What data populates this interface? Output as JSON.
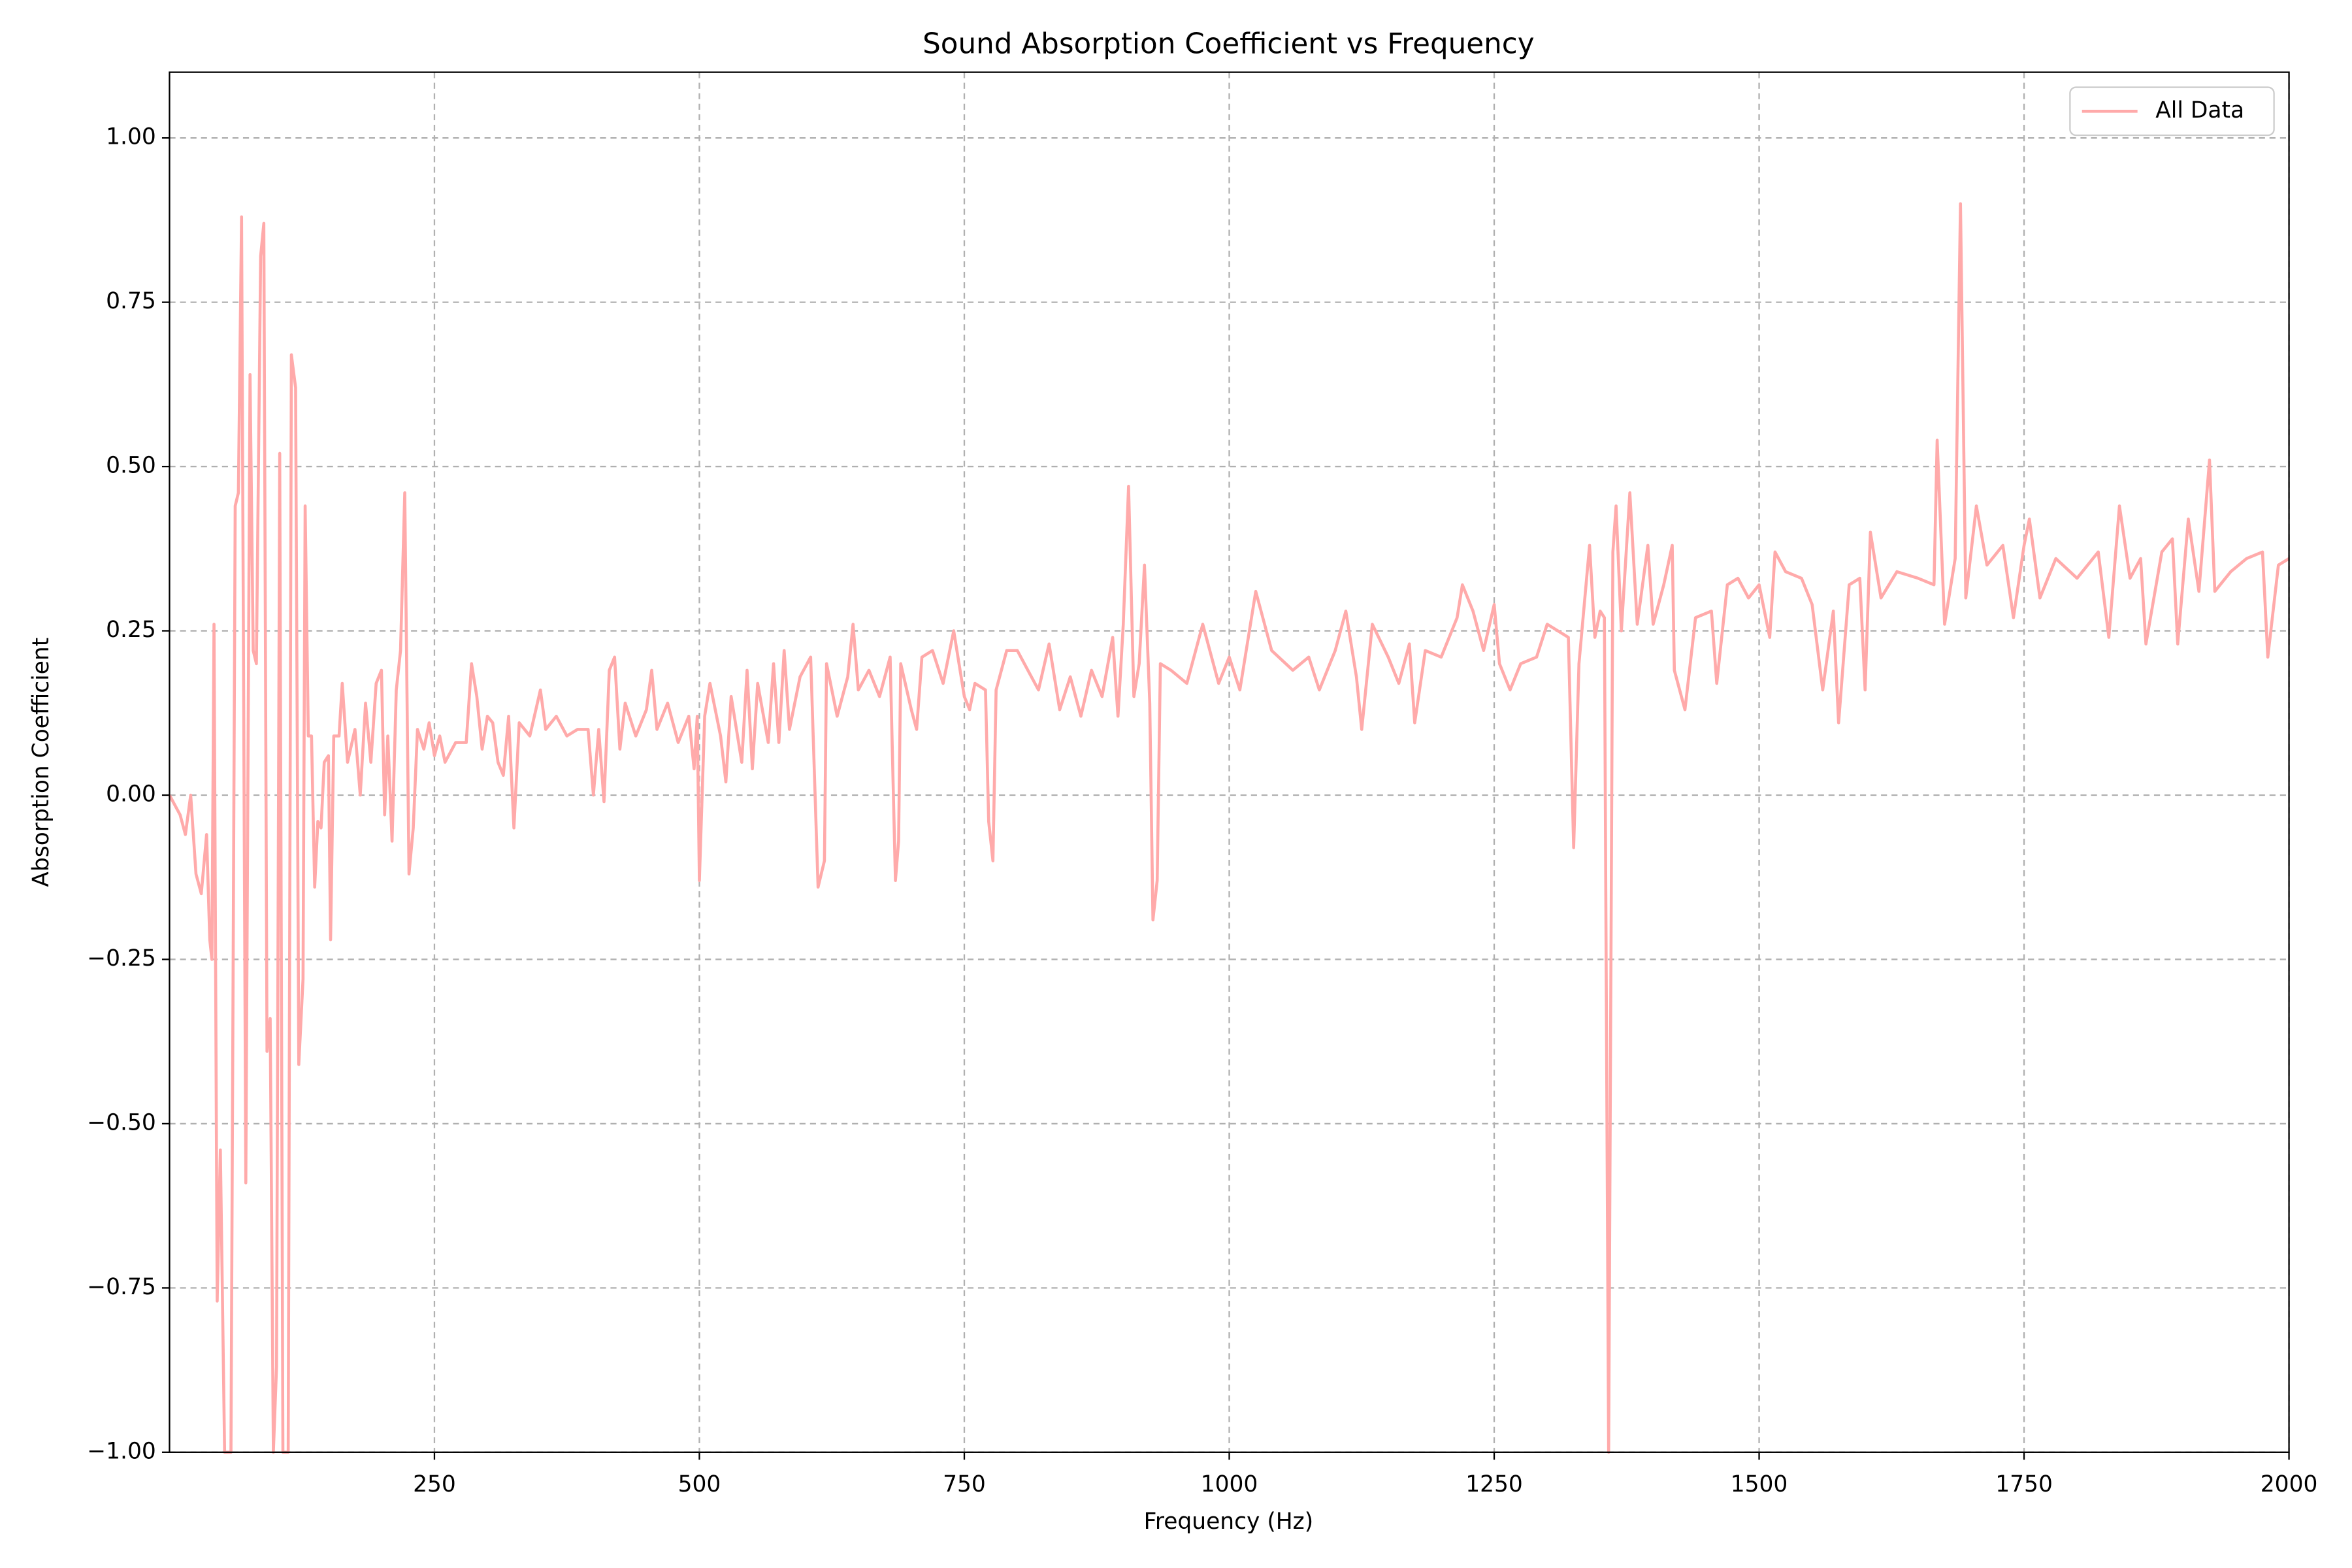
{
  "chart_data": {
    "type": "line",
    "title": "Sound Absorption Coefficient vs Frequency",
    "x_label": "Frequency (Hz)",
    "y_label": "Absorption Coefficient",
    "x": [
      0,
      10,
      15,
      20,
      25,
      30,
      35,
      38,
      40,
      42,
      45,
      48,
      52,
      58,
      62,
      65,
      68,
      72,
      76,
      79,
      82,
      86,
      89,
      92,
      95,
      98,
      101,
      104,
      107,
      112,
      115,
      119,
      122,
      126,
      128,
      131,
      134,
      137,
      140,
      143,
      146,
      150,
      152,
      155,
      160,
      163,
      168,
      175,
      180,
      185,
      190,
      195,
      200,
      203,
      206,
      210,
      214,
      218,
      222,
      226,
      230,
      234,
      240,
      245,
      250,
      255,
      260,
      270,
      280,
      285,
      290,
      295,
      300,
      305,
      310,
      315,
      320,
      325,
      330,
      340,
      350,
      355,
      365,
      375,
      385,
      395,
      400,
      405,
      410,
      415,
      420,
      425,
      430,
      440,
      450,
      455,
      460,
      470,
      480,
      490,
      495,
      498,
      500,
      505,
      510,
      520,
      525,
      530,
      535,
      540,
      545,
      550,
      555,
      565,
      570,
      575,
      580,
      585,
      595,
      605,
      612,
      618,
      620,
      630,
      640,
      645,
      650,
      660,
      670,
      680,
      685,
      688,
      690,
      700,
      705,
      710,
      720,
      730,
      740,
      750,
      755,
      760,
      770,
      773,
      777,
      780,
      790,
      800,
      810,
      820,
      830,
      840,
      850,
      860,
      870,
      880,
      890,
      895,
      900,
      905,
      910,
      915,
      920,
      925,
      928,
      932,
      935,
      945,
      960,
      975,
      990,
      1000,
      1010,
      1025,
      1040,
      1060,
      1075,
      1085,
      1100,
      1110,
      1120,
      1125,
      1135,
      1150,
      1160,
      1170,
      1175,
      1185,
      1200,
      1215,
      1220,
      1230,
      1240,
      1250,
      1255,
      1265,
      1275,
      1290,
      1300,
      1320,
      1325,
      1330,
      1340,
      1345,
      1350,
      1354,
      1358,
      1362,
      1365,
      1370,
      1378,
      1385,
      1395,
      1400,
      1410,
      1418,
      1420,
      1430,
      1440,
      1455,
      1460,
      1470,
      1480,
      1490,
      1500,
      1510,
      1515,
      1525,
      1540,
      1550,
      1560,
      1570,
      1575,
      1585,
      1595,
      1600,
      1605,
      1615,
      1630,
      1650,
      1665,
      1668,
      1675,
      1685,
      1690,
      1695,
      1705,
      1715,
      1730,
      1740,
      1750,
      1755,
      1765,
      1780,
      1800,
      1820,
      1830,
      1840,
      1850,
      1860,
      1865,
      1880,
      1890,
      1895,
      1905,
      1915,
      1925,
      1930,
      1945,
      1960,
      1975,
      1980,
      1990,
      2000
    ],
    "series": [
      {
        "name": "All Data",
        "color": "#ffaaaa",
        "values": [
          0.0,
          -0.03,
          -0.06,
          0.0,
          -0.12,
          -0.15,
          -0.06,
          -0.22,
          -0.25,
          0.26,
          -0.77,
          -0.54,
          -1.0,
          -1.0,
          0.44,
          0.46,
          0.88,
          -0.59,
          0.64,
          0.22,
          0.2,
          0.82,
          0.87,
          -0.39,
          -0.34,
          -1.0,
          -0.87,
          0.52,
          -1.0,
          -1.0,
          0.67,
          0.62,
          -0.41,
          -0.28,
          0.44,
          0.09,
          0.09,
          -0.14,
          -0.04,
          -0.05,
          0.05,
          0.06,
          -0.22,
          0.09,
          0.09,
          0.17,
          0.05,
          0.1,
          0.0,
          0.14,
          0.05,
          0.17,
          0.19,
          -0.03,
          0.09,
          -0.07,
          0.16,
          0.22,
          0.46,
          -0.12,
          -0.05,
          0.1,
          0.07,
          0.11,
          0.06,
          0.09,
          0.05,
          0.08,
          0.08,
          0.2,
          0.15,
          0.07,
          0.12,
          0.11,
          0.05,
          0.03,
          0.12,
          -0.05,
          0.11,
          0.09,
          0.16,
          0.1,
          0.12,
          0.09,
          0.1,
          0.1,
          0.0,
          0.1,
          -0.01,
          0.19,
          0.21,
          0.07,
          0.14,
          0.09,
          0.13,
          0.19,
          0.1,
          0.14,
          0.08,
          0.12,
          0.04,
          0.12,
          -0.13,
          0.12,
          0.17,
          0.09,
          0.02,
          0.15,
          0.1,
          0.05,
          0.19,
          0.04,
          0.17,
          0.08,
          0.2,
          0.08,
          0.22,
          0.1,
          0.18,
          0.21,
          -0.14,
          -0.1,
          0.2,
          0.12,
          0.18,
          0.26,
          0.16,
          0.19,
          0.15,
          0.21,
          -0.13,
          -0.07,
          0.2,
          0.13,
          0.1,
          0.21,
          0.22,
          0.17,
          0.25,
          0.15,
          0.13,
          0.17,
          0.16,
          -0.04,
          -0.1,
          0.16,
          0.22,
          0.22,
          0.19,
          0.16,
          0.23,
          0.13,
          0.18,
          0.12,
          0.19,
          0.15,
          0.24,
          0.12,
          0.26,
          0.47,
          0.15,
          0.2,
          0.35,
          0.14,
          -0.19,
          -0.13,
          0.2,
          0.19,
          0.17,
          0.26,
          0.17,
          0.21,
          0.16,
          0.31,
          0.22,
          0.19,
          0.21,
          0.16,
          0.22,
          0.28,
          0.18,
          0.1,
          0.26,
          0.21,
          0.17,
          0.23,
          0.11,
          0.22,
          0.21,
          0.27,
          0.32,
          0.28,
          0.22,
          0.29,
          0.2,
          0.16,
          0.2,
          0.21,
          0.26,
          0.24,
          -0.08,
          0.2,
          0.38,
          0.24,
          0.28,
          0.27,
          -1.0,
          0.37,
          0.44,
          0.25,
          0.46,
          0.26,
          0.38,
          0.26,
          0.32,
          0.38,
          0.19,
          0.13,
          0.27,
          0.28,
          0.17,
          0.32,
          0.33,
          0.3,
          0.32,
          0.24,
          0.37,
          0.34,
          0.33,
          0.29,
          0.16,
          0.28,
          0.11,
          0.32,
          0.33,
          0.16,
          0.4,
          0.3,
          0.34,
          0.33,
          0.32,
          0.54,
          0.26,
          0.36,
          0.9,
          0.3,
          0.44,
          0.35,
          0.38,
          0.27,
          0.38,
          0.42,
          0.3,
          0.36,
          0.33,
          0.37,
          0.24,
          0.44,
          0.33,
          0.36,
          0.23,
          0.37,
          0.39,
          0.23,
          0.42,
          0.31,
          0.51,
          0.31,
          0.34,
          0.36,
          0.37,
          0.21,
          0.35,
          0.36
        ]
      }
    ],
    "xlim": [
      0,
      2000
    ],
    "ylim": [
      -1.0,
      1.1
    ],
    "xticks": [
      250,
      500,
      750,
      1000,
      1250,
      1500,
      1750,
      2000
    ],
    "yticks": [
      {
        "value": -1.0,
        "label": "−1.00"
      },
      {
        "value": -0.75,
        "label": "−0.75"
      },
      {
        "value": -0.5,
        "label": "−0.50"
      },
      {
        "value": -0.25,
        "label": "−0.25"
      },
      {
        "value": 0,
        "label": "0.00"
      },
      {
        "value": 0.25,
        "label": "0.25"
      },
      {
        "value": 0.5,
        "label": "0.50"
      },
      {
        "value": 0.75,
        "label": "0.75"
      },
      {
        "value": 1.0,
        "label": "1.00"
      }
    ],
    "grid": true,
    "legend": "upper right"
  }
}
